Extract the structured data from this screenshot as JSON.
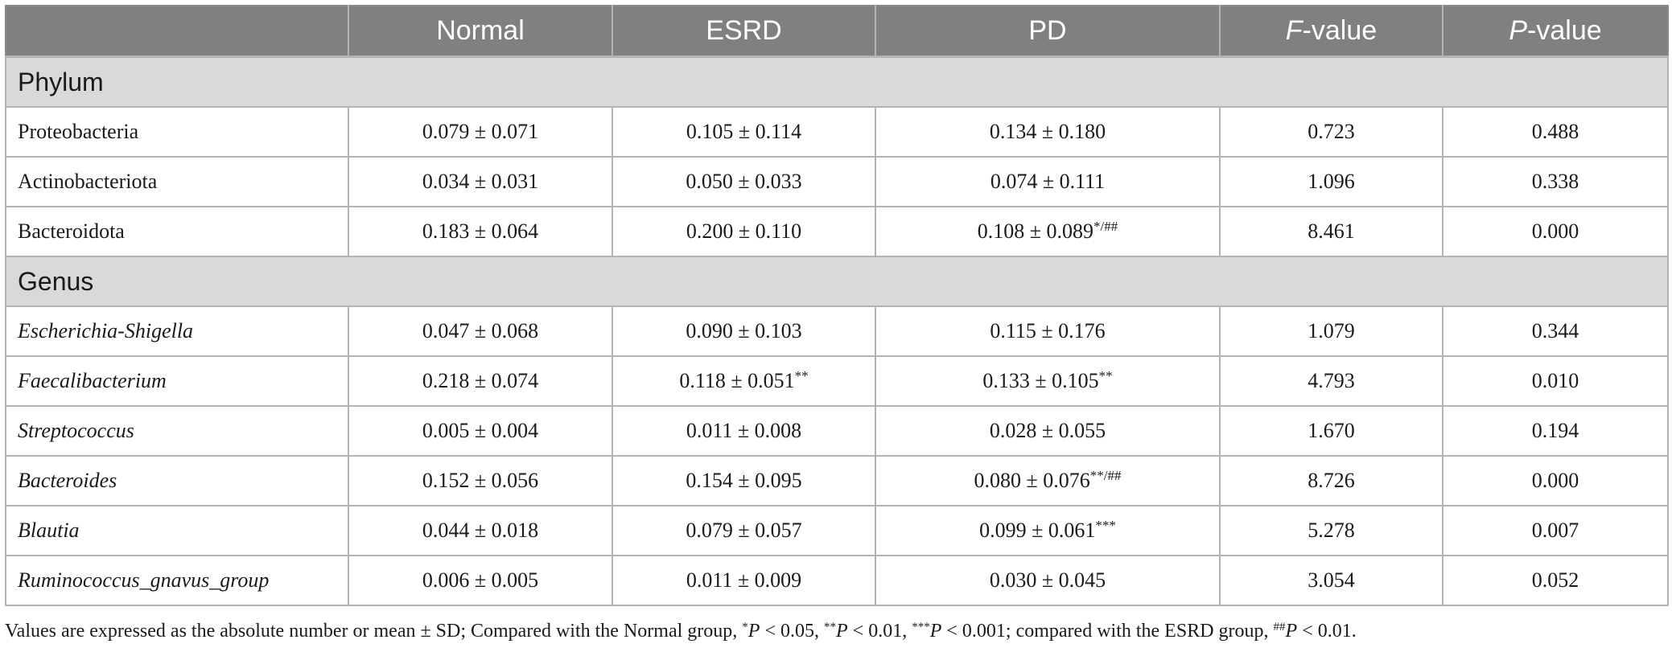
{
  "columns": [
    {
      "label": "",
      "italic_prefix": ""
    },
    {
      "label": "Normal",
      "italic_prefix": ""
    },
    {
      "label": "ESRD",
      "italic_prefix": ""
    },
    {
      "label": "PD",
      "italic_prefix": ""
    },
    {
      "label": "-value",
      "italic_prefix": "F"
    },
    {
      "label": "-value",
      "italic_prefix": "P"
    }
  ],
  "sections": [
    {
      "title": "Phylum",
      "rows": [
        {
          "name": "Proteobacteria",
          "italic": false,
          "normal": "0.079 ± 0.071",
          "esrd": "0.105 ± 0.114",
          "esrd_mark": "",
          "pd": "0.134 ± 0.180",
          "pd_mark": "",
          "f": "0.723",
          "p": "0.488"
        },
        {
          "name": "Actinobacteriota",
          "italic": false,
          "normal": "0.034 ± 0.031",
          "esrd": "0.050 ± 0.033",
          "esrd_mark": "",
          "pd": "0.074 ± 0.111",
          "pd_mark": "",
          "f": "1.096",
          "p": "0.338"
        },
        {
          "name": "Bacteroidota",
          "italic": false,
          "normal": "0.183 ± 0.064",
          "esrd": "0.200 ± 0.110",
          "esrd_mark": "",
          "pd": "0.108 ± 0.089",
          "pd_mark": "*/##",
          "f": "8.461",
          "p": "0.000"
        }
      ]
    },
    {
      "title": "Genus",
      "rows": [
        {
          "name": "Escherichia-Shigella",
          "italic": true,
          "normal": "0.047 ± 0.068",
          "esrd": "0.090 ± 0.103",
          "esrd_mark": "",
          "pd": "0.115 ± 0.176",
          "pd_mark": "",
          "f": "1.079",
          "p": "0.344"
        },
        {
          "name": "Faecalibacterium",
          "italic": true,
          "normal": "0.218 ± 0.074",
          "esrd": "0.118 ± 0.051",
          "esrd_mark": "**",
          "pd": "0.133 ± 0.105",
          "pd_mark": "**",
          "f": "4.793",
          "p": "0.010"
        },
        {
          "name": "Streptococcus",
          "italic": true,
          "normal": "0.005 ± 0.004",
          "esrd": "0.011 ± 0.008",
          "esrd_mark": "",
          "pd": "0.028 ± 0.055",
          "pd_mark": "",
          "f": "1.670",
          "p": "0.194"
        },
        {
          "name": "Bacteroides",
          "italic": true,
          "normal": "0.152 ± 0.056",
          "esrd": "0.154 ± 0.095",
          "esrd_mark": "",
          "pd": "0.080 ± 0.076",
          "pd_mark": "**/##",
          "f": "8.726",
          "p": "0.000"
        },
        {
          "name": "Blautia",
          "italic": true,
          "normal": "0.044 ± 0.018",
          "esrd": "0.079 ± 0.057",
          "esrd_mark": "",
          "pd": "0.099 ± 0.061",
          "pd_mark": "***",
          "f": "5.278",
          "p": "0.007"
        },
        {
          "name": "Ruminococcus_gnavus_group",
          "italic": true,
          "normal": "0.006 ± 0.005",
          "esrd": "0.011 ± 0.009",
          "esrd_mark": "",
          "pd": "0.030 ± 0.045",
          "pd_mark": "",
          "f": "3.054",
          "p": "0.052"
        }
      ]
    }
  ],
  "footnote": {
    "intro": "Values are expressed as the absolute number or mean ± SD; Compared with the Normal group, ",
    "items": [
      {
        "mark": "*",
        "var": "P",
        "text": " < 0.05, "
      },
      {
        "mark": "**",
        "var": "P",
        "text": " < 0.01, "
      },
      {
        "mark": "***",
        "var": "P",
        "text": " < 0.001; compared with the ESRD group, "
      },
      {
        "mark": "##",
        "var": "P",
        "text": " < 0.01."
      }
    ]
  }
}
